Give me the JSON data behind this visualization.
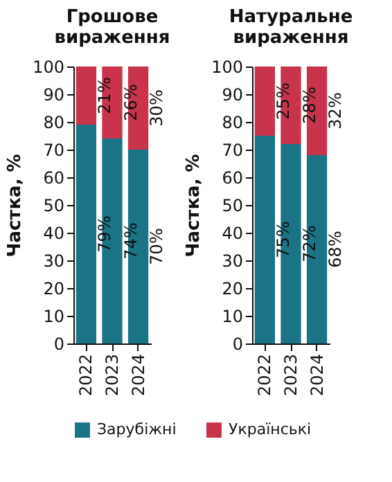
{
  "chart_data": [
    {
      "type": "bar",
      "title": "Грошове вираження",
      "categories": [
        "2022",
        "2023",
        "2024"
      ],
      "stacked": true,
      "ylabel": "Частка, %",
      "ylim": [
        0,
        100
      ],
      "yticks": [
        0,
        10,
        20,
        30,
        40,
        50,
        60,
        70,
        80,
        90,
        100
      ],
      "legend": "bottom",
      "grid": false,
      "series": [
        {
          "name": "Зарубіжні",
          "color": "#1b7386",
          "values": [
            79,
            74,
            70
          ],
          "value_labels": [
            "79%",
            "74%",
            "70%"
          ]
        },
        {
          "name": "Українські",
          "color": "#c8344c",
          "values": [
            21,
            26,
            30
          ],
          "value_labels": [
            "21%",
            "26%",
            "30%"
          ]
        }
      ]
    },
    {
      "type": "bar",
      "title": "Натуральне вираження",
      "categories": [
        "2022",
        "2023",
        "2024"
      ],
      "stacked": true,
      "ylabel": "Частка, %",
      "ylim": [
        0,
        100
      ],
      "yticks": [
        0,
        10,
        20,
        30,
        40,
        50,
        60,
        70,
        80,
        90,
        100
      ],
      "legend": "bottom",
      "grid": false,
      "series": [
        {
          "name": "Зарубіжні",
          "color": "#1b7386",
          "values": [
            75,
            72,
            68
          ],
          "value_labels": [
            "75%",
            "72%",
            "68%"
          ]
        },
        {
          "name": "Українські",
          "color": "#c8344c",
          "values": [
            25,
            28,
            32
          ],
          "value_labels": [
            "25%",
            "28%",
            "32%"
          ]
        }
      ]
    }
  ]
}
